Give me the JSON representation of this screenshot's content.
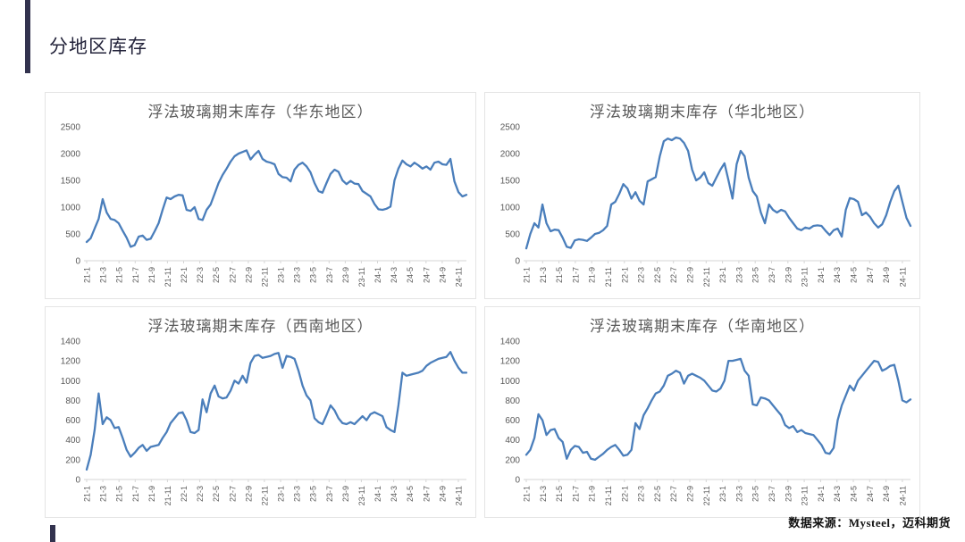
{
  "page": {
    "title": "分地区库存",
    "source_note": "数据来源：Mysteel，迈科期货",
    "accent_color": "#32324e",
    "line_color": "#4a7ebb"
  },
  "x_labels": [
    "21-1",
    "21-3",
    "21-5",
    "21-7",
    "21-9",
    "21-11",
    "22-1",
    "22-3",
    "22-5",
    "22-7",
    "22-9",
    "22-11",
    "23-1",
    "23-3",
    "23-5",
    "23-7",
    "23-9",
    "23-11",
    "24-1",
    "24-3",
    "24-5",
    "24-7",
    "24-9",
    "24-11"
  ],
  "chart_data": [
    {
      "type": "line",
      "title": "浮法玻璃期末库存（华东地区）",
      "region": "华东地区",
      "xlabel": "",
      "ylabel": "",
      "ylim": [
        0,
        2500
      ],
      "y_ticks": [
        0,
        500,
        1000,
        1500,
        2000,
        2500
      ],
      "grid": false,
      "legend": "none",
      "line_color": "#4a7ebb",
      "x_labels_ref": "x_labels",
      "values": [
        350,
        420,
        600,
        780,
        1150,
        900,
        780,
        760,
        700,
        560,
        430,
        260,
        290,
        450,
        470,
        390,
        410,
        550,
        700,
        950,
        1180,
        1150,
        1200,
        1230,
        1220,
        950,
        930,
        1000,
        780,
        760,
        950,
        1050,
        1250,
        1450,
        1600,
        1720,
        1850,
        1950,
        2000,
        2030,
        2060,
        1890,
        1980,
        2050,
        1900,
        1850,
        1830,
        1800,
        1620,
        1560,
        1550,
        1480,
        1700,
        1790,
        1830,
        1760,
        1650,
        1450,
        1300,
        1270,
        1450,
        1620,
        1700,
        1660,
        1500,
        1430,
        1490,
        1440,
        1430,
        1300,
        1250,
        1200,
        1060,
        960,
        950,
        970,
        1010,
        1500,
        1720,
        1870,
        1800,
        1760,
        1830,
        1780,
        1720,
        1760,
        1700,
        1830,
        1850,
        1800,
        1790,
        1900,
        1480,
        1280,
        1200,
        1230
      ]
    },
    {
      "type": "line",
      "title": "浮法玻璃期末库存（华北地区）",
      "region": "华北地区",
      "xlabel": "",
      "ylabel": "",
      "ylim": [
        0,
        2500
      ],
      "y_ticks": [
        0,
        500,
        1000,
        1500,
        2000,
        2500
      ],
      "grid": false,
      "legend": "none",
      "line_color": "#4a7ebb",
      "x_labels_ref": "x_labels",
      "values": [
        230,
        500,
        700,
        620,
        1050,
        700,
        550,
        580,
        570,
        430,
        260,
        240,
        380,
        400,
        390,
        370,
        430,
        500,
        520,
        570,
        650,
        1050,
        1100,
        1250,
        1430,
        1350,
        1160,
        1280,
        1120,
        1050,
        1480,
        1520,
        1560,
        1950,
        2230,
        2280,
        2250,
        2300,
        2280,
        2200,
        2050,
        1700,
        1500,
        1550,
        1650,
        1450,
        1400,
        1550,
        1700,
        1820,
        1500,
        1160,
        1800,
        2050,
        1950,
        1550,
        1300,
        1200,
        900,
        700,
        1050,
        950,
        900,
        950,
        920,
        800,
        700,
        600,
        570,
        620,
        600,
        650,
        660,
        650,
        560,
        480,
        570,
        600,
        450,
        950,
        1170,
        1150,
        1100,
        850,
        900,
        820,
        700,
        620,
        680,
        850,
        1100,
        1300,
        1400,
        1100,
        800,
        650
      ]
    },
    {
      "type": "line",
      "title": "浮法玻璃期末库存（西南地区）",
      "region": "西南地区",
      "xlabel": "",
      "ylabel": "",
      "ylim": [
        0,
        1400
      ],
      "y_ticks": [
        0,
        200,
        400,
        600,
        800,
        1000,
        1200,
        1400
      ],
      "grid": false,
      "legend": "none",
      "line_color": "#4a7ebb",
      "x_labels_ref": "x_labels",
      "values": [
        100,
        250,
        500,
        870,
        560,
        630,
        600,
        520,
        530,
        420,
        300,
        230,
        270,
        320,
        350,
        290,
        330,
        340,
        350,
        420,
        480,
        570,
        620,
        670,
        680,
        600,
        480,
        470,
        500,
        810,
        680,
        870,
        950,
        840,
        820,
        830,
        900,
        1000,
        970,
        1050,
        980,
        1180,
        1250,
        1260,
        1230,
        1240,
        1250,
        1270,
        1280,
        1130,
        1250,
        1240,
        1220,
        1100,
        950,
        850,
        800,
        620,
        580,
        560,
        650,
        750,
        700,
        620,
        570,
        560,
        580,
        560,
        600,
        640,
        600,
        660,
        680,
        660,
        640,
        530,
        500,
        480,
        750,
        1080,
        1050,
        1060,
        1070,
        1080,
        1100,
        1150,
        1180,
        1200,
        1220,
        1230,
        1240,
        1290,
        1200,
        1130,
        1080,
        1080
      ]
    },
    {
      "type": "line",
      "title": "浮法玻璃期末库存（华南地区）",
      "region": "华南地区",
      "xlabel": "",
      "ylabel": "",
      "ylim": [
        0,
        1400
      ],
      "y_ticks": [
        0,
        200,
        400,
        600,
        800,
        1000,
        1200,
        1400
      ],
      "grid": false,
      "legend": "none",
      "line_color": "#4a7ebb",
      "x_labels_ref": "x_labels",
      "values": [
        250,
        300,
        420,
        660,
        600,
        450,
        500,
        510,
        420,
        380,
        210,
        300,
        340,
        330,
        270,
        280,
        210,
        200,
        230,
        260,
        300,
        330,
        350,
        300,
        240,
        250,
        300,
        570,
        510,
        650,
        720,
        800,
        870,
        890,
        950,
        1050,
        1070,
        1100,
        1080,
        970,
        1050,
        1070,
        1050,
        1030,
        1000,
        950,
        900,
        890,
        920,
        1000,
        1200,
        1200,
        1210,
        1220,
        1100,
        1050,
        760,
        750,
        830,
        820,
        800,
        750,
        700,
        650,
        550,
        520,
        540,
        480,
        500,
        470,
        460,
        450,
        400,
        350,
        270,
        260,
        320,
        600,
        750,
        850,
        950,
        900,
        1000,
        1050,
        1100,
        1150,
        1200,
        1190,
        1100,
        1120,
        1150,
        1160,
        1000,
        800,
        780,
        810
      ]
    }
  ]
}
